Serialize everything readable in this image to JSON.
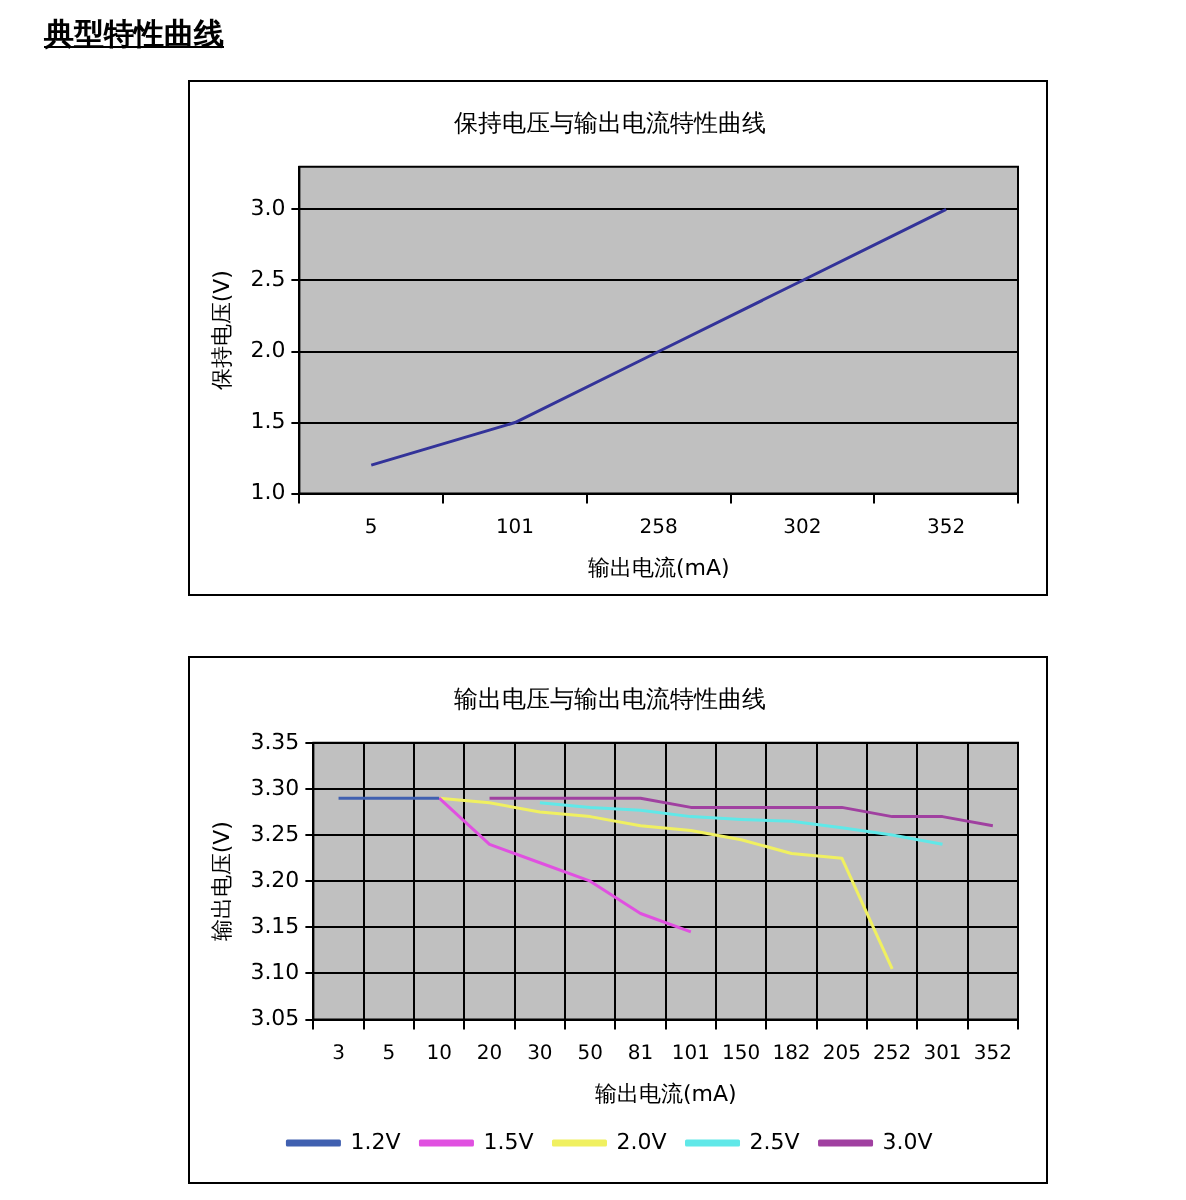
{
  "chart_data": [
    {
      "type": "line",
      "title": "保持电压与输出电流特性曲线",
      "annotations": [
        "典型特性曲线"
      ],
      "xlabel": "输出电流(mA)",
      "ylabel": "保持电压(V)",
      "categories": [
        "5",
        "101",
        "258",
        "302",
        "352"
      ],
      "series": [
        {
          "color": "#333399",
          "values": [
            1.2,
            1.5,
            2.0,
            2.5,
            3.0
          ]
        }
      ],
      "ylim": [
        1.0,
        3.3
      ],
      "yticks": [
        {
          "value": 1.0,
          "label": "1.0"
        },
        {
          "value": 1.5,
          "label": "1.5"
        },
        {
          "value": 2.0,
          "label": "2.0"
        },
        {
          "value": 2.5,
          "label": "2.5"
        },
        {
          "value": 3.0,
          "label": "3.0"
        }
      ],
      "grid": "y",
      "legend": false
    },
    {
      "type": "line",
      "title": "输出电压与输出电流特性曲线",
      "xlabel": "输出电流(mA)",
      "ylabel": "输出电压(V)",
      "categories": [
        "3",
        "5",
        "10",
        "20",
        "30",
        "50",
        "81",
        "101",
        "150",
        "182",
        "205",
        "252",
        "301",
        "352"
      ],
      "series": [
        {
          "name": "1.2V",
          "color": "#4060b0",
          "values": [
            3.29,
            3.29,
            3.29,
            null,
            null,
            null,
            null,
            null,
            null,
            null,
            null,
            null,
            null,
            null
          ]
        },
        {
          "name": "1.5V",
          "color": "#e050e0",
          "values": [
            null,
            null,
            3.29,
            3.24,
            3.22,
            3.2,
            3.165,
            3.145,
            null,
            null,
            null,
            null,
            null,
            null
          ]
        },
        {
          "name": "2.0V",
          "color": "#f0f060",
          "values": [
            null,
            null,
            3.29,
            3.285,
            3.275,
            3.27,
            3.26,
            3.255,
            3.245,
            3.23,
            3.225,
            3.105,
            null,
            null
          ]
        },
        {
          "name": "2.5V",
          "color": "#60e8e8",
          "values": [
            null,
            null,
            null,
            null,
            3.285,
            3.28,
            3.277,
            3.27,
            3.267,
            3.265,
            3.258,
            3.25,
            3.24,
            null
          ]
        },
        {
          "name": "3.0V",
          "color": "#a040a0",
          "values": [
            null,
            null,
            null,
            3.29,
            3.29,
            3.29,
            3.29,
            3.28,
            3.28,
            3.28,
            3.28,
            3.27,
            3.27,
            3.26
          ]
        }
      ],
      "ylim": [
        3.05,
        3.35
      ],
      "yticks": [
        {
          "value": 3.05,
          "label": "3.05"
        },
        {
          "value": 3.1,
          "label": "3.10"
        },
        {
          "value": 3.15,
          "label": "3.15"
        },
        {
          "value": 3.2,
          "label": "3.20"
        },
        {
          "value": 3.25,
          "label": "3.25"
        },
        {
          "value": 3.3,
          "label": "3.30"
        },
        {
          "value": 3.35,
          "label": "3.35"
        }
      ],
      "grid": true,
      "legend": "bottom"
    }
  ]
}
